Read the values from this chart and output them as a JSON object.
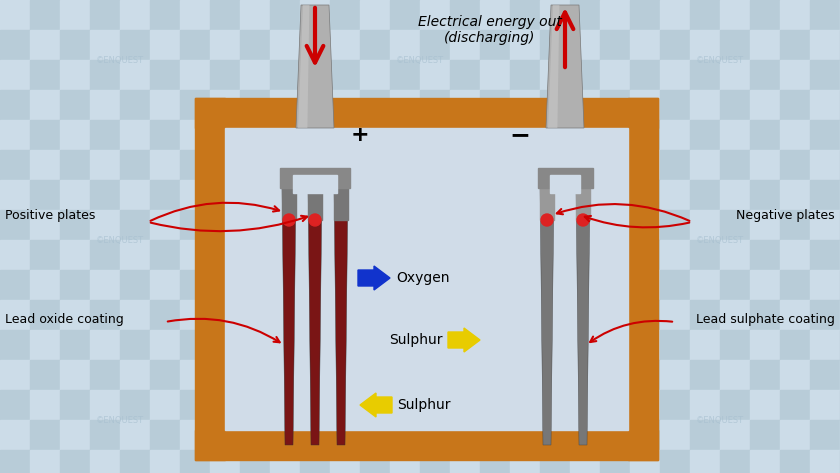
{
  "bg_checker_light": "#ccdce8",
  "bg_checker_dark": "#b8ccd8",
  "battery_color": "#c8761a",
  "electrolyte_color": "#d0dce8",
  "title_text": "Electrical energy out\n(discharging)",
  "plus_label": "+",
  "minus_label": "−",
  "left_plate_color": "#7a1515",
  "left_plate_stripe": "#555555",
  "right_plate_color": "#707070",
  "gray_terminal": "#aaaaaa",
  "gray_terminal_dark": "#888888",
  "gray_terminal_darker": "#666666",
  "red_arrow": "#cc0000",
  "blue_arrow": "#1133cc",
  "yellow_arrow": "#e8cc00",
  "watermark_color": "#a8c0d0",
  "label_fontsize": 9,
  "title_fontsize": 10,
  "oxygen_text": "Oxygen",
  "sulphur_text": "Sulphur"
}
